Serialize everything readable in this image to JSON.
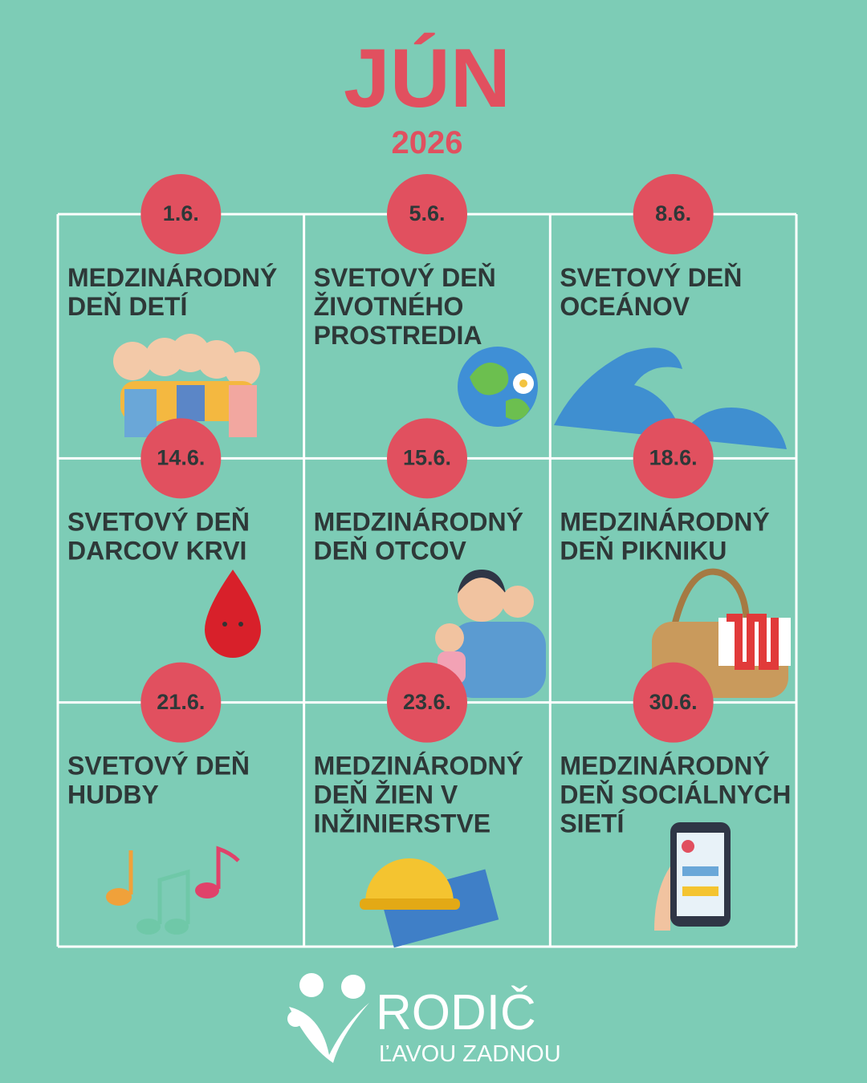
{
  "header": {
    "title": "JÚN",
    "subtitle": "2026"
  },
  "calendar": [
    {
      "date": "1.6.",
      "lines": [
        "MEDZINÁRODNÝ",
        "DEŇ DETÍ"
      ]
    },
    {
      "date": "5.6.",
      "lines": [
        "SVETOVÝ DEŇ",
        "ŽIVOTNÉHO",
        "PROSTREDIA"
      ]
    },
    {
      "date": "8.6.",
      "lines": [
        "SVETOVÝ DEŇ",
        "OCEÁNOV"
      ]
    },
    {
      "date": "14.6.",
      "lines": [
        "SVETOVÝ DEŇ",
        "DARCOV KRVI"
      ]
    },
    {
      "date": "15.6.",
      "lines": [
        "MEDZINÁRODNÝ",
        "DEŇ OTCOV"
      ]
    },
    {
      "date": "18.6.",
      "lines": [
        "MEDZINÁRODNÝ",
        "DEŇ PIKNIKU"
      ]
    },
    {
      "date": "21.6.",
      "lines": [
        "SVETOVÝ DEŇ",
        "HUDBY"
      ]
    },
    {
      "date": "23.6.",
      "lines": [
        "MEDZINÁRODNÝ",
        "DEŇ ŽIEN V",
        "INŽINIERSTVE"
      ]
    },
    {
      "date": "30.6.",
      "lines": [
        "MEDZINÁRODNÝ",
        "DEŇ SOCIÁLNYCH",
        "SIETÍ"
      ]
    }
  ],
  "footer": {
    "brand": "RODIČ",
    "tagline": "ĽAVOU ZADNOU"
  }
}
